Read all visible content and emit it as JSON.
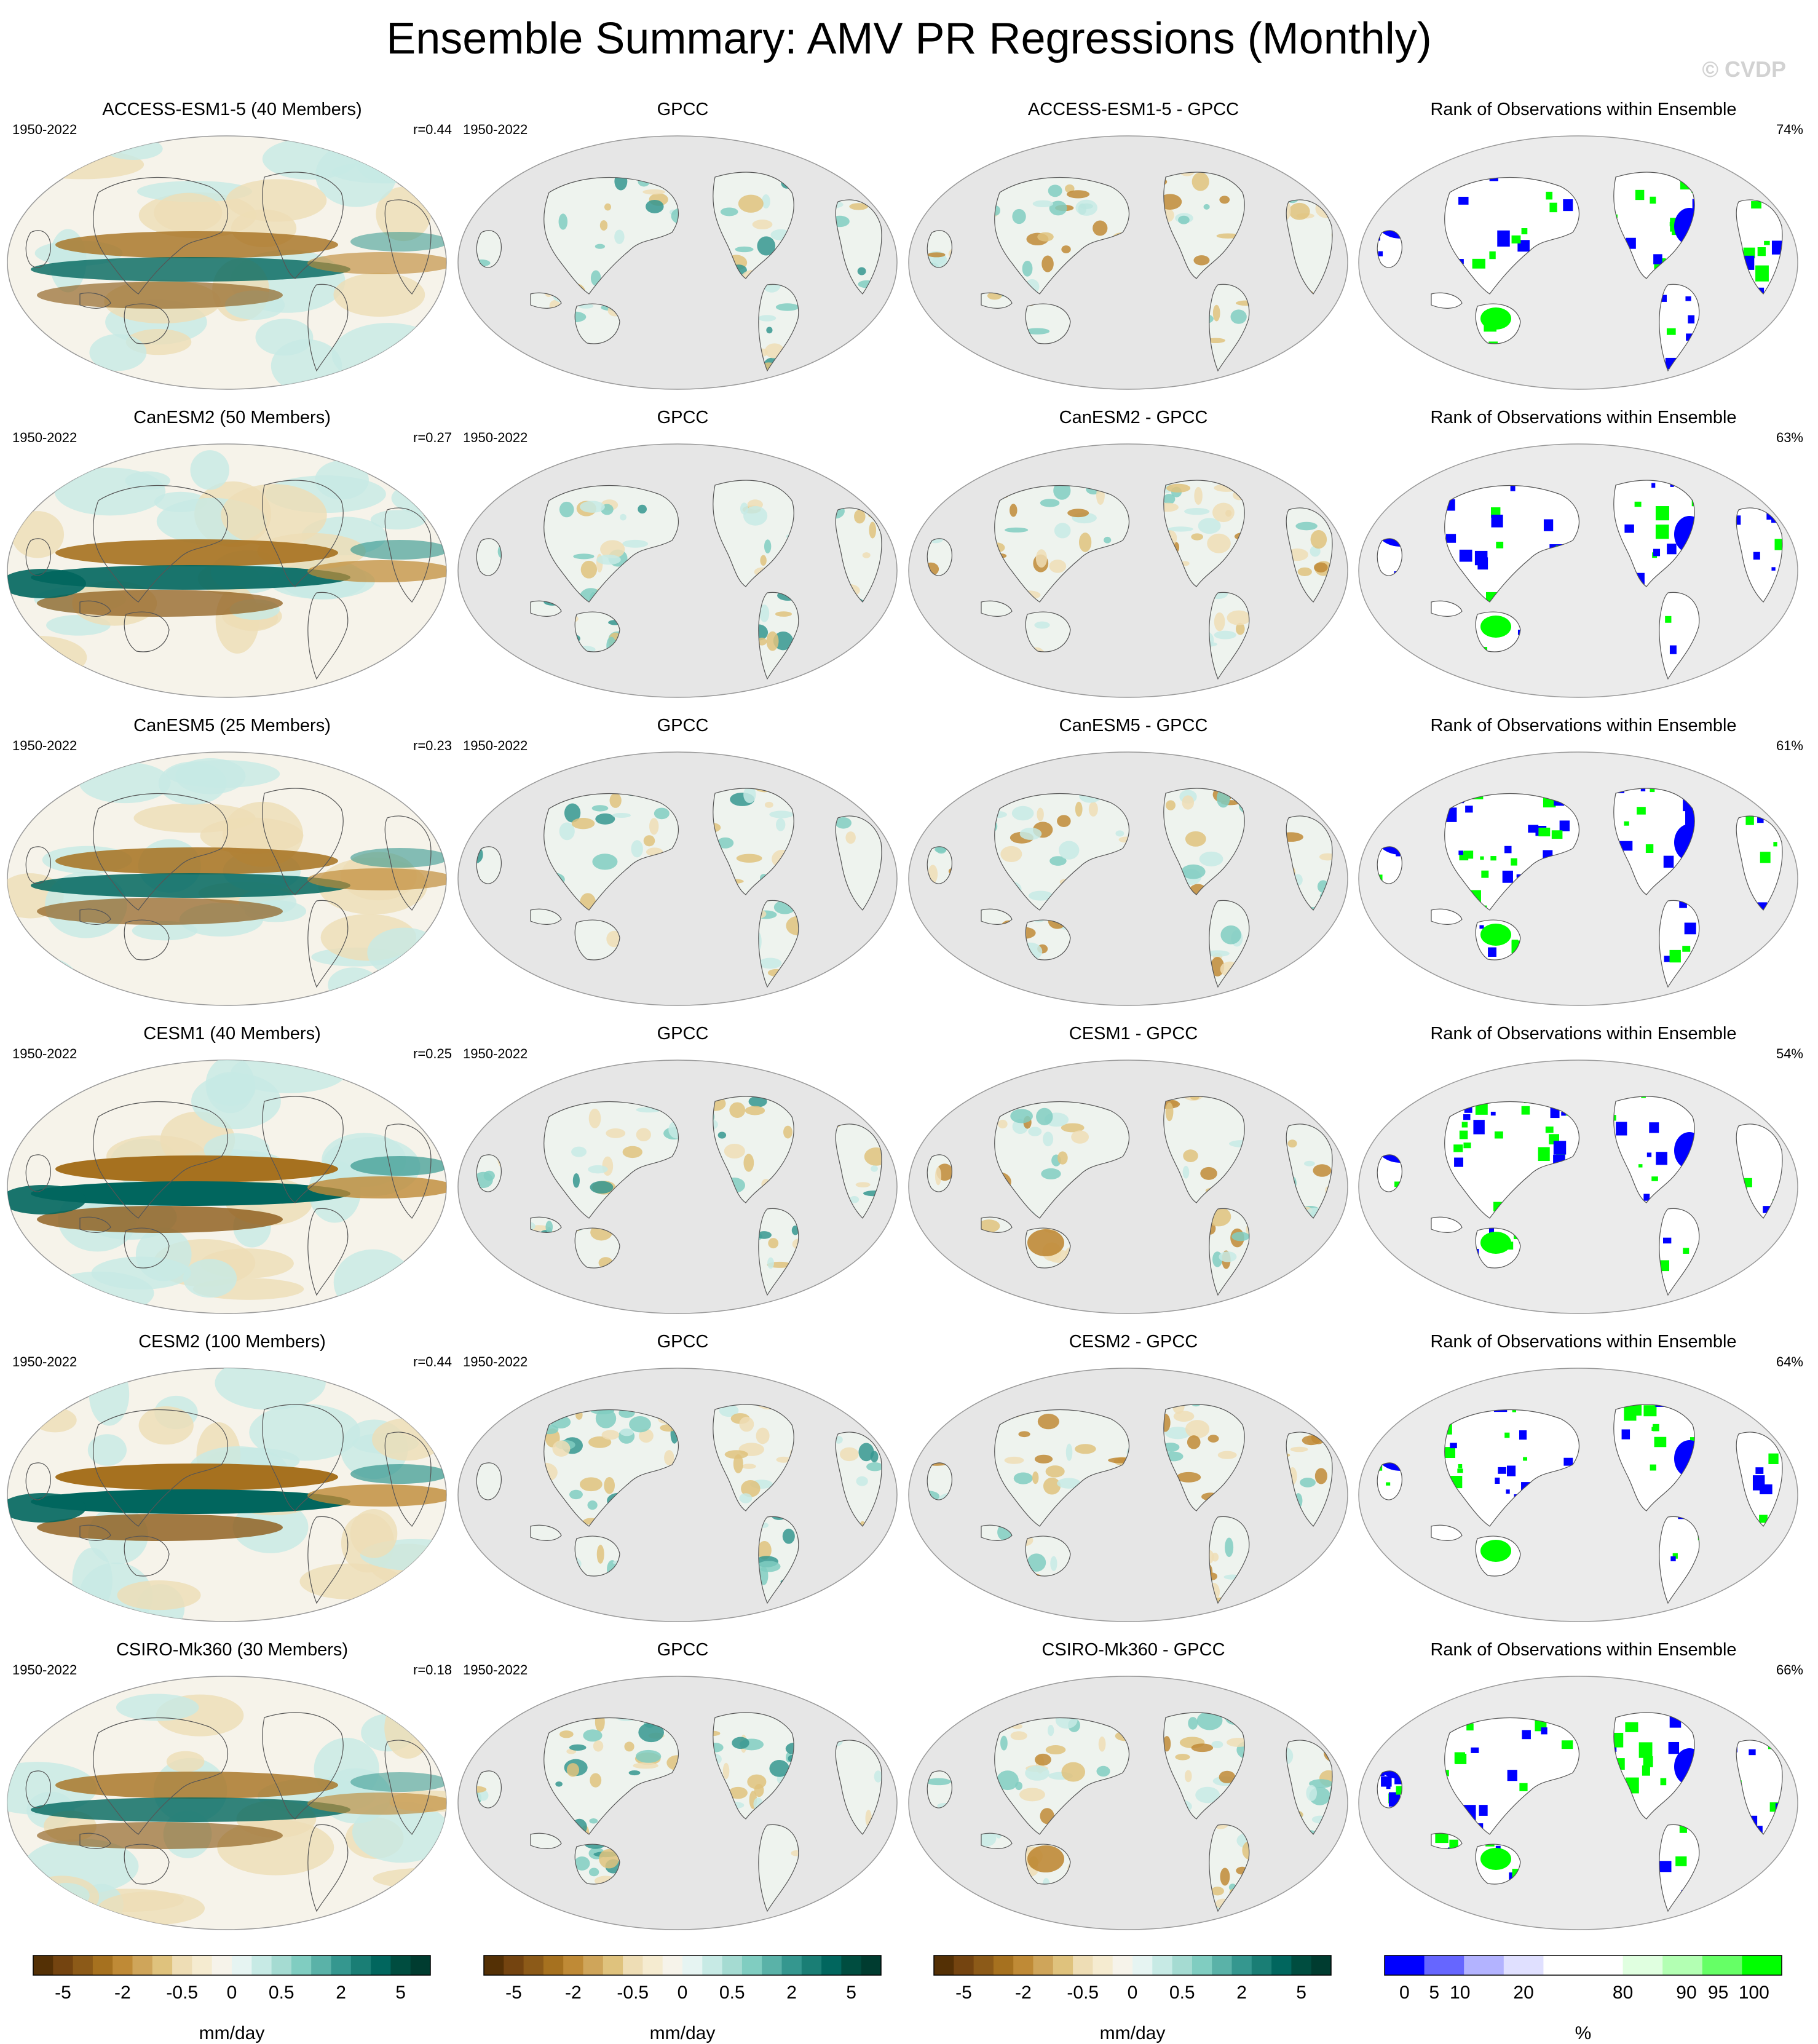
{
  "title": "Ensemble Summary: AMV PR Regressions (Monthly)",
  "watermark": "© CVDP",
  "rows": [
    {
      "model_title": "ACCESS-ESM1-5 (40 Members)",
      "period": "1950-2022",
      "r": "r=0.44",
      "obs_title": "GPCC",
      "obs_period": "1950-2022",
      "diff_title": "ACCESS-ESM1-5 - GPCC",
      "rank_title": "Rank of Observations within Ensemble",
      "rank_pct": "74%"
    },
    {
      "model_title": "CanESM2 (50 Members)",
      "period": "1950-2022",
      "r": "r=0.27",
      "obs_title": "GPCC",
      "obs_period": "1950-2022",
      "diff_title": "CanESM2 - GPCC",
      "rank_title": "Rank of Observations within Ensemble",
      "rank_pct": "63%"
    },
    {
      "model_title": "CanESM5 (25 Members)",
      "period": "1950-2022",
      "r": "r=0.23",
      "obs_title": "GPCC",
      "obs_period": "1950-2022",
      "diff_title": "CanESM5 - GPCC",
      "rank_title": "Rank of Observations within Ensemble",
      "rank_pct": "61%"
    },
    {
      "model_title": "CESM1 (40 Members)",
      "period": "1950-2022",
      "r": "r=0.25",
      "obs_title": "GPCC",
      "obs_period": "1950-2022",
      "diff_title": "CESM1 - GPCC",
      "rank_title": "Rank of Observations within Ensemble",
      "rank_pct": "54%"
    },
    {
      "model_title": "CESM2 (100 Members)",
      "period": "1950-2022",
      "r": "r=0.44",
      "obs_title": "GPCC",
      "obs_period": "1950-2022",
      "diff_title": "CESM2 - GPCC",
      "rank_title": "Rank of Observations within Ensemble",
      "rank_pct": "64%"
    },
    {
      "model_title": "CSIRO-Mk360 (30 Members)",
      "period": "1950-2022",
      "r": "r=0.18",
      "obs_title": "GPCC",
      "obs_period": "1950-2022",
      "diff_title": "CSIRO-Mk360 - GPCC",
      "rank_title": "Rank of Observations within Ensemble",
      "rank_pct": "66%"
    }
  ],
  "colorbar_pr": {
    "ticks": [
      "-5",
      "-2",
      "-0.5",
      "0",
      "0.5",
      "2",
      "5"
    ],
    "units": "mm/day",
    "colors": [
      "#543005",
      "#744410",
      "#8c5a18",
      "#a6711f",
      "#bf8a36",
      "#cfa55a",
      "#dfc27d",
      "#eeddb5",
      "#f5ebd0",
      "#f6f3ea",
      "#e6f4f2",
      "#c7eae5",
      "#a5dbd2",
      "#80cdc1",
      "#5ab2a8",
      "#35978f",
      "#1a7e75",
      "#01665e",
      "#004d40",
      "#003c30"
    ]
  },
  "colorbar_rank": {
    "ticks": [
      "0",
      "5",
      "10",
      "20",
      "80",
      "90",
      "95",
      "100"
    ],
    "units": "%",
    "colors": [
      "#0000ff",
      "#6666ff",
      "#b3b3ff",
      "#e0e0ff",
      "#ffffff",
      "#ffffff",
      "#e0ffe0",
      "#b3ffb3",
      "#66ff66",
      "#00ff00"
    ]
  },
  "map_colors": {
    "land_missing": "#e6e6e6",
    "coast": "#555555",
    "brown": "#bf8a36",
    "teal": "#35978f",
    "dark_teal": "#01665e",
    "dark_brown": "#8c5a18",
    "blue": "#0000ff",
    "green": "#00ff00"
  }
}
